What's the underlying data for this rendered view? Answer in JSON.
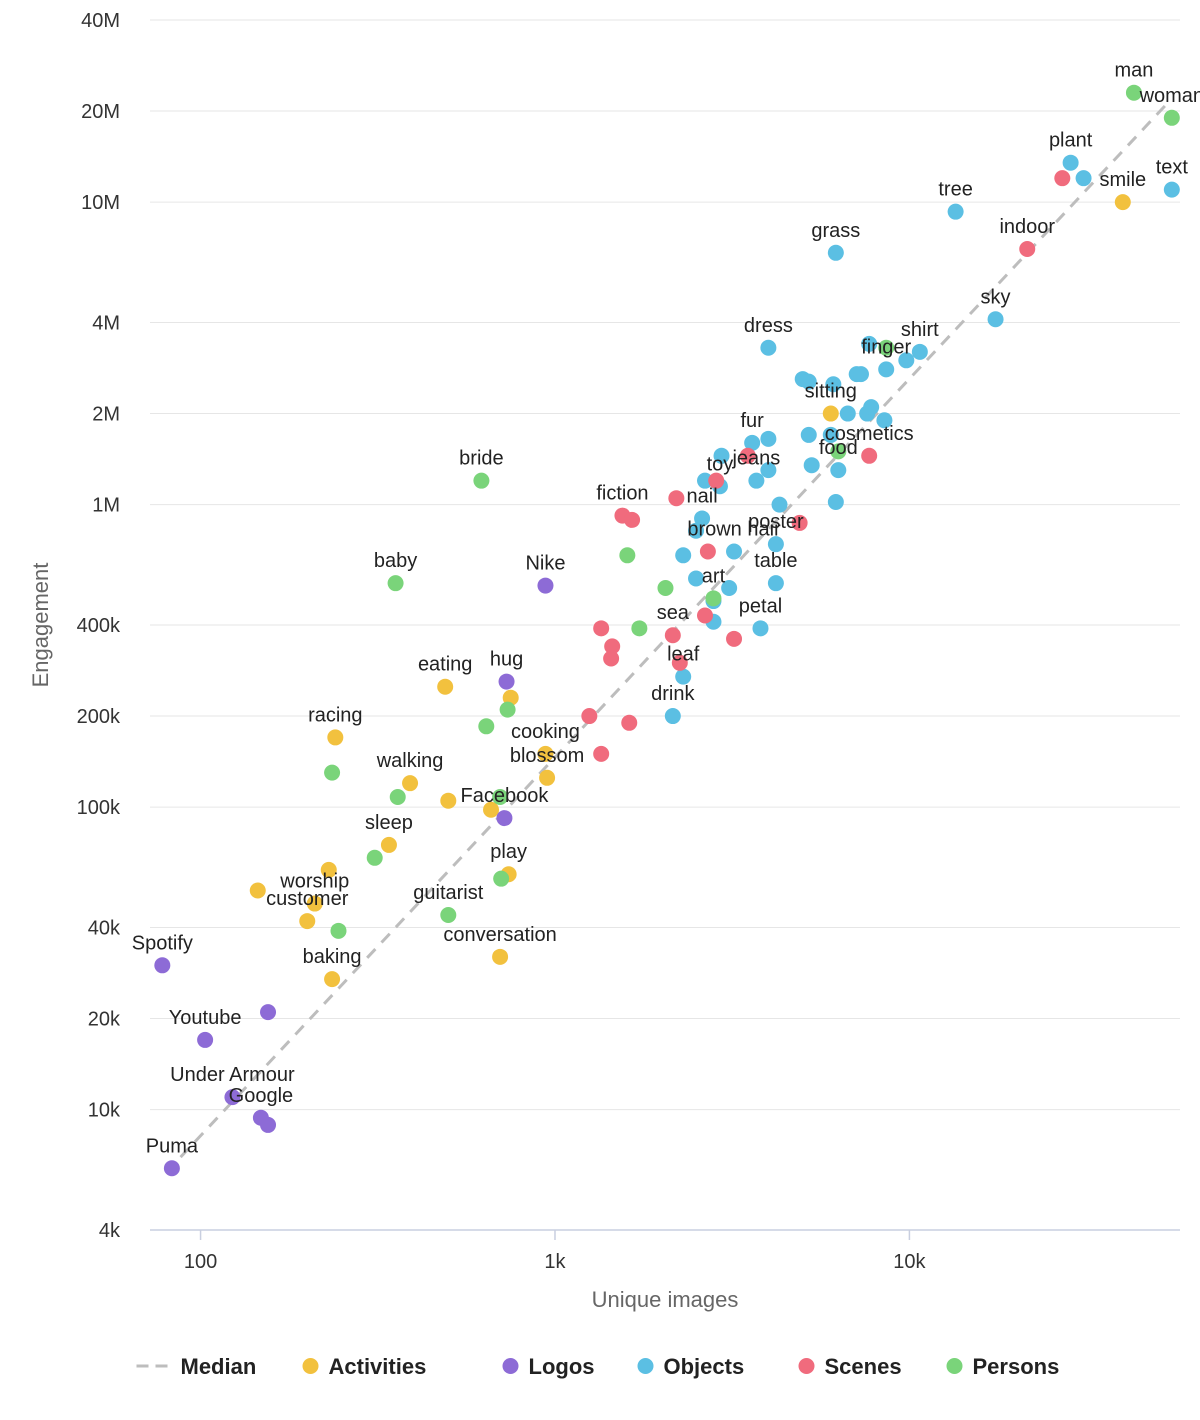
{
  "chart_data": {
    "type": "scatter",
    "xlabel": "Unique images",
    "ylabel": "Engagement",
    "xscale": "log",
    "yscale": "log",
    "xlim": [
      72,
      58000
    ],
    "ylim": [
      4000,
      40000000
    ],
    "xticks": [
      {
        "value": 100,
        "label": "100"
      },
      {
        "value": 1000,
        "label": "1k"
      },
      {
        "value": 10000,
        "label": "10k"
      }
    ],
    "yticks": [
      {
        "value": 4000,
        "label": "4k"
      },
      {
        "value": 10000,
        "label": "10k"
      },
      {
        "value": 20000,
        "label": "20k"
      },
      {
        "value": 40000,
        "label": "40k"
      },
      {
        "value": 100000,
        "label": "100k"
      },
      {
        "value": 200000,
        "label": "200k"
      },
      {
        "value": 400000,
        "label": "400k"
      },
      {
        "value": 1000000,
        "label": "1M"
      },
      {
        "value": 2000000,
        "label": "2M"
      },
      {
        "value": 4000000,
        "label": "4M"
      },
      {
        "value": 10000000,
        "label": "10M"
      },
      {
        "value": 20000000,
        "label": "20M"
      },
      {
        "value": 40000000,
        "label": "40M"
      }
    ],
    "median": {
      "name": "Median",
      "from": [
        80,
        6200
      ],
      "to": [
        53000,
        21000000
      ]
    },
    "legend": [
      {
        "key": "median",
        "label": "Median",
        "color": "#bdbdbd"
      },
      {
        "key": "activities",
        "label": "Activities",
        "color": "#f2c13e"
      },
      {
        "key": "logos",
        "label": "Logos",
        "color": "#8d6bd6"
      },
      {
        "key": "objects",
        "label": "Objects",
        "color": "#5bbfe3"
      },
      {
        "key": "scenes",
        "label": "Scenes",
        "color": "#f06b7d"
      },
      {
        "key": "persons",
        "label": "Persons",
        "color": "#7ad47a"
      }
    ],
    "series": [
      {
        "name": "Activities",
        "key": "activities",
        "color": "#f2c13e",
        "points": [
          {
            "x": 40000,
            "y": 10000000,
            "label": "smile"
          },
          {
            "x": 6000,
            "y": 2000000,
            "label": "sitting"
          },
          {
            "x": 490,
            "y": 250000,
            "label": "eating"
          },
          {
            "x": 240,
            "y": 170000,
            "label": "racing"
          },
          {
            "x": 390,
            "y": 120000,
            "label": "walking"
          },
          {
            "x": 340,
            "y": 75000,
            "label": "sleep"
          },
          {
            "x": 230,
            "y": 62000
          },
          {
            "x": 210,
            "y": 48000,
            "label": "worship"
          },
          {
            "x": 145,
            "y": 53000
          },
          {
            "x": 200,
            "y": 42000,
            "label": "customer"
          },
          {
            "x": 235,
            "y": 27000,
            "label": "baking"
          },
          {
            "x": 700,
            "y": 32000,
            "label": "conversation"
          },
          {
            "x": 750,
            "y": 230000
          },
          {
            "x": 940,
            "y": 150000,
            "label": "cooking"
          },
          {
            "x": 950,
            "y": 125000,
            "label": "blossom"
          },
          {
            "x": 500,
            "y": 105000
          },
          {
            "x": 660,
            "y": 98000
          },
          {
            "x": 740,
            "y": 60000,
            "label": "play"
          }
        ]
      },
      {
        "name": "Logos",
        "key": "logos",
        "color": "#8d6bd6",
        "points": [
          {
            "x": 940,
            "y": 540000,
            "label": "Nike"
          },
          {
            "x": 730,
            "y": 260000,
            "label": "hug"
          },
          {
            "x": 720,
            "y": 92000,
            "label": "Facebook"
          },
          {
            "x": 78,
            "y": 30000,
            "label": "Spotify"
          },
          {
            "x": 155,
            "y": 21000
          },
          {
            "x": 103,
            "y": 17000,
            "label": "Youtube"
          },
          {
            "x": 123,
            "y": 11000,
            "label": "Under Armour"
          },
          {
            "x": 148,
            "y": 9400,
            "label": "Google"
          },
          {
            "x": 155,
            "y": 8900
          },
          {
            "x": 83,
            "y": 6400,
            "label": "Puma"
          }
        ]
      },
      {
        "name": "Objects",
        "key": "objects",
        "color": "#5bbfe3",
        "points": [
          {
            "x": 28500,
            "y": 13500000,
            "label": "plant"
          },
          {
            "x": 31000,
            "y": 12000000
          },
          {
            "x": 55000,
            "y": 11000000,
            "label": "text"
          },
          {
            "x": 13500,
            "y": 9300000,
            "label": "tree"
          },
          {
            "x": 6200,
            "y": 6800000,
            "label": "grass"
          },
          {
            "x": 17500,
            "y": 4100000,
            "label": "sky"
          },
          {
            "x": 4000,
            "y": 3300000,
            "label": "dress"
          },
          {
            "x": 7700,
            "y": 3400000
          },
          {
            "x": 10700,
            "y": 3200000,
            "label": "shirt"
          },
          {
            "x": 9800,
            "y": 3000000
          },
          {
            "x": 8600,
            "y": 2800000,
            "label": "finger"
          },
          {
            "x": 5000,
            "y": 2600000
          },
          {
            "x": 5200,
            "y": 2550000
          },
          {
            "x": 6100,
            "y": 2500000
          },
          {
            "x": 7100,
            "y": 2700000
          },
          {
            "x": 7300,
            "y": 2700000
          },
          {
            "x": 6700,
            "y": 2000000
          },
          {
            "x": 7600,
            "y": 2000000
          },
          {
            "x": 7800,
            "y": 2100000
          },
          {
            "x": 8500,
            "y": 1900000
          },
          {
            "x": 3600,
            "y": 1600000,
            "label": "fur"
          },
          {
            "x": 4000,
            "y": 1650000
          },
          {
            "x": 5200,
            "y": 1700000
          },
          {
            "x": 6000,
            "y": 1700000
          },
          {
            "x": 2950,
            "y": 1450000
          },
          {
            "x": 5300,
            "y": 1350000
          },
          {
            "x": 6300,
            "y": 1300000,
            "label": "food"
          },
          {
            "x": 4000,
            "y": 1300000
          },
          {
            "x": 3700,
            "y": 1200000,
            "label": "jeans"
          },
          {
            "x": 2650,
            "y": 1200000
          },
          {
            "x": 2920,
            "y": 1150000,
            "label": "toy"
          },
          {
            "x": 4300,
            "y": 1000000
          },
          {
            "x": 6200,
            "y": 1020000
          },
          {
            "x": 2600,
            "y": 900000,
            "label": "nail"
          },
          {
            "x": 2500,
            "y": 820000
          },
          {
            "x": 4200,
            "y": 740000,
            "label": "poster"
          },
          {
            "x": 3200,
            "y": 700000,
            "label": "brown hair"
          },
          {
            "x": 2300,
            "y": 680000
          },
          {
            "x": 2500,
            "y": 570000
          },
          {
            "x": 4200,
            "y": 550000,
            "label": "table"
          },
          {
            "x": 3100,
            "y": 530000
          },
          {
            "x": 2800,
            "y": 480000
          },
          {
            "x": 2800,
            "y": 410000
          },
          {
            "x": 3800,
            "y": 390000,
            "label": "petal"
          },
          {
            "x": 2300,
            "y": 270000,
            "label": "leaf"
          },
          {
            "x": 2150,
            "y": 200000,
            "label": "drink"
          }
        ]
      },
      {
        "name": "Scenes",
        "key": "scenes",
        "color": "#f06b7d",
        "points": [
          {
            "x": 27000,
            "y": 12000000
          },
          {
            "x": 21500,
            "y": 7000000,
            "label": "indoor"
          },
          {
            "x": 7700,
            "y": 1450000,
            "label": "cosmetics"
          },
          {
            "x": 3500,
            "y": 1450000
          },
          {
            "x": 2850,
            "y": 1200000
          },
          {
            "x": 2200,
            "y": 1050000
          },
          {
            "x": 1550,
            "y": 920000,
            "label": "fiction"
          },
          {
            "x": 1650,
            "y": 890000
          },
          {
            "x": 4900,
            "y": 870000
          },
          {
            "x": 2700,
            "y": 700000
          },
          {
            "x": 2650,
            "y": 430000
          },
          {
            "x": 3200,
            "y": 360000
          },
          {
            "x": 1350,
            "y": 390000
          },
          {
            "x": 2150,
            "y": 370000,
            "label": "sea"
          },
          {
            "x": 1450,
            "y": 340000
          },
          {
            "x": 1440,
            "y": 310000
          },
          {
            "x": 2250,
            "y": 300000
          },
          {
            "x": 1250,
            "y": 200000
          },
          {
            "x": 1620,
            "y": 190000
          },
          {
            "x": 1350,
            "y": 150000
          }
        ]
      },
      {
        "name": "Persons",
        "key": "persons",
        "color": "#7ad47a",
        "points": [
          {
            "x": 43000,
            "y": 23000000,
            "label": "man"
          },
          {
            "x": 55000,
            "y": 19000000,
            "label": "woman"
          },
          {
            "x": 8600,
            "y": 3300000
          },
          {
            "x": 6300,
            "y": 1500000
          },
          {
            "x": 620,
            "y": 1200000,
            "label": "bride"
          },
          {
            "x": 355,
            "y": 550000,
            "label": "baby"
          },
          {
            "x": 1600,
            "y": 680000
          },
          {
            "x": 2050,
            "y": 530000
          },
          {
            "x": 2800,
            "y": 490000,
            "label": "art"
          },
          {
            "x": 1730,
            "y": 390000
          },
          {
            "x": 735,
            "y": 210000
          },
          {
            "x": 640,
            "y": 185000
          },
          {
            "x": 235,
            "y": 130000
          },
          {
            "x": 360,
            "y": 108000
          },
          {
            "x": 700,
            "y": 108000
          },
          {
            "x": 310,
            "y": 68000
          },
          {
            "x": 705,
            "y": 58000
          },
          {
            "x": 500,
            "y": 44000,
            "label": "guitarist"
          },
          {
            "x": 245,
            "y": 39000
          }
        ]
      }
    ]
  }
}
